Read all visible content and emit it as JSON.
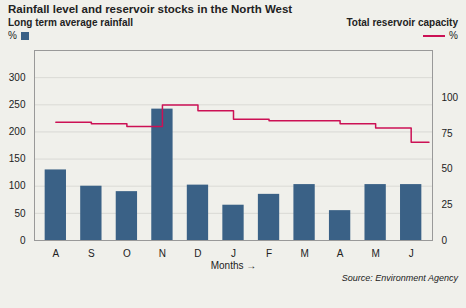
{
  "chart_data": {
    "type": "bar",
    "title": "Rainfall level and reservoir stocks in the North West",
    "categories": [
      "A",
      "S",
      "O",
      "N",
      "D",
      "J",
      "F",
      "M",
      "A",
      "M",
      "J"
    ],
    "xlabel": "Months",
    "xlim": [
      -0.6,
      10.6
    ],
    "ylabel": "%",
    "y2label": "%",
    "ylim": [
      0,
      350
    ],
    "yticks": [
      0,
      50,
      100,
      150,
      200,
      250,
      300
    ],
    "y2lim": [
      0,
      133.33
    ],
    "y2ticks": [
      0,
      25,
      50,
      75,
      100
    ],
    "grid": true,
    "series": [
      {
        "name": "Long term average rainfall",
        "type": "bar",
        "color": "#3a6186",
        "values": [
          130,
          100,
          90,
          242,
          102,
          65,
          85,
          103,
          55,
          103,
          103
        ]
      },
      {
        "name": "Total reservoir capacity",
        "type": "line",
        "line_style": "step",
        "color": "#cc1155",
        "axis": "y2",
        "x": [
          0,
          1,
          2,
          3,
          4,
          5,
          6,
          7,
          8,
          9,
          10,
          10.5
        ],
        "values": [
          83,
          82,
          80,
          95,
          91,
          85,
          84,
          84,
          82,
          79,
          69,
          69
        ]
      }
    ],
    "annotations": [
      "Source: Environment Agency"
    ]
  }
}
